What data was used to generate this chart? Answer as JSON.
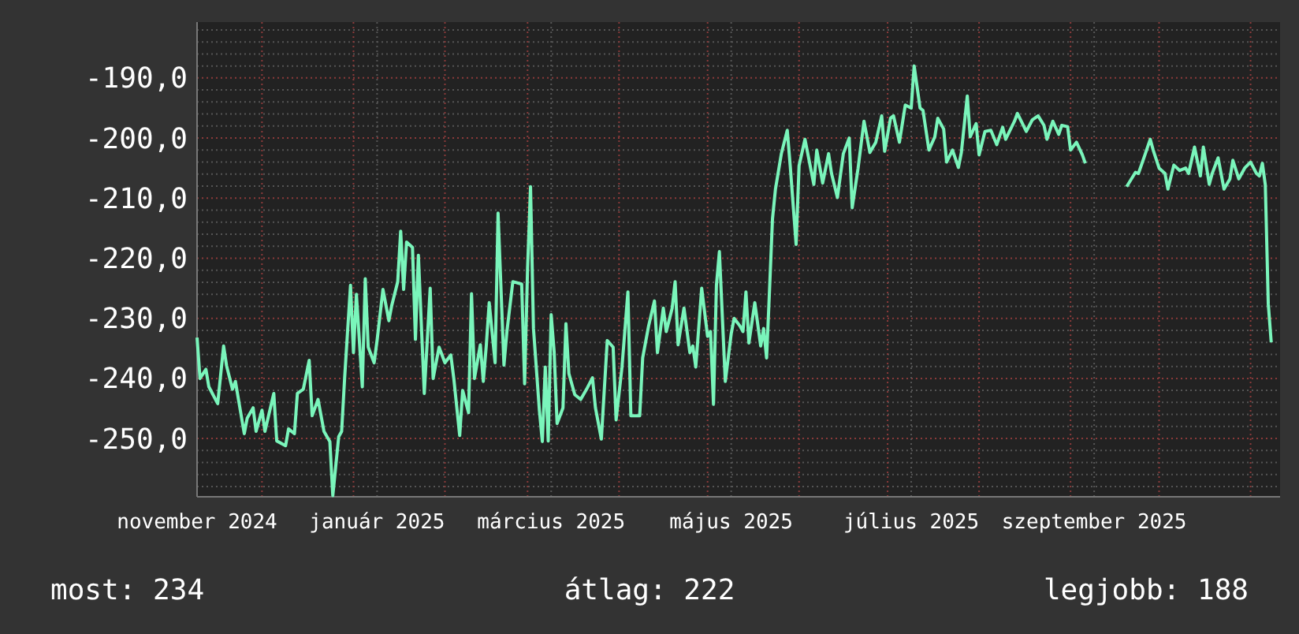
{
  "chart_data": {
    "type": "line",
    "xlim": [
      "2024-11-09",
      "2025-11-11"
    ],
    "ylim": [
      -259.7,
      -180.7
    ],
    "xticks": [
      {
        "value": "2024-11-09",
        "label": "november 2024"
      },
      {
        "value": "2024-12-01",
        "label": null
      },
      {
        "value": "2025-01-01",
        "label": null
      },
      {
        "value": "2025-01-09",
        "label": "január 2025"
      },
      {
        "value": "2025-02-01",
        "label": null
      },
      {
        "value": "2025-03-01",
        "label": null
      },
      {
        "value": "2025-03-09",
        "label": "március 2025"
      },
      {
        "value": "2025-04-01",
        "label": null
      },
      {
        "value": "2025-05-01",
        "label": null
      },
      {
        "value": "2025-05-09",
        "label": "május 2025"
      },
      {
        "value": "2025-06-01",
        "label": null
      },
      {
        "value": "2025-07-01",
        "label": null
      },
      {
        "value": "2025-07-09",
        "label": "július 2025"
      },
      {
        "value": "2025-08-01",
        "label": null
      },
      {
        "value": "2025-09-01",
        "label": null
      },
      {
        "value": "2025-09-09",
        "label": "szeptember 2025"
      },
      {
        "value": "2025-10-01",
        "label": null
      },
      {
        "value": "2025-11-01",
        "label": null
      }
    ],
    "yticks": [
      {
        "value": -258,
        "label": null
      },
      {
        "value": -256,
        "label": null
      },
      {
        "value": -254,
        "label": null
      },
      {
        "value": -252,
        "label": null
      },
      {
        "value": -250,
        "label": "-250,0"
      },
      {
        "value": -248,
        "label": null
      },
      {
        "value": -246,
        "label": null
      },
      {
        "value": -244,
        "label": null
      },
      {
        "value": -242,
        "label": null
      },
      {
        "value": -240,
        "label": "-240,0"
      },
      {
        "value": -238,
        "label": null
      },
      {
        "value": -236,
        "label": null
      },
      {
        "value": -234,
        "label": null
      },
      {
        "value": -232,
        "label": null
      },
      {
        "value": -230,
        "label": "-230,0"
      },
      {
        "value": -228,
        "label": null
      },
      {
        "value": -226,
        "label": null
      },
      {
        "value": -224,
        "label": null
      },
      {
        "value": -222,
        "label": null
      },
      {
        "value": -220,
        "label": "-220,0"
      },
      {
        "value": -218,
        "label": null
      },
      {
        "value": -216,
        "label": null
      },
      {
        "value": -214,
        "label": null
      },
      {
        "value": -212,
        "label": null
      },
      {
        "value": -210,
        "label": "-210,0"
      },
      {
        "value": -208,
        "label": null
      },
      {
        "value": -206,
        "label": null
      },
      {
        "value": -204,
        "label": null
      },
      {
        "value": -202,
        "label": null
      },
      {
        "value": -200,
        "label": "-200,0"
      },
      {
        "value": -198,
        "label": null
      },
      {
        "value": -196,
        "label": null
      },
      {
        "value": -194,
        "label": null
      },
      {
        "value": -192,
        "label": null
      },
      {
        "value": -190,
        "label": "-190,0"
      },
      {
        "value": -188,
        "label": null
      },
      {
        "value": -186,
        "label": null
      },
      {
        "value": -184,
        "label": null
      },
      {
        "value": -182,
        "label": null
      }
    ],
    "grid": true,
    "annotations": [
      "most: 234",
      "átlag: 222",
      "legjobb: 188"
    ],
    "x": [
      "2024-11-09",
      "2024-11-10",
      "2024-11-12",
      "2024-11-13",
      "2024-11-16",
      "2024-11-18",
      "2024-11-19",
      "2024-11-21",
      "2024-11-22",
      "2024-11-25",
      "2024-11-26",
      "2024-11-28",
      "2024-11-29",
      "2024-12-01",
      "2024-12-02",
      "2024-12-05",
      "2024-12-06",
      "2024-12-09",
      "2024-12-10",
      "2024-12-12",
      "2024-12-13",
      "2024-12-15",
      "2024-12-17",
      "2024-12-18",
      "2024-12-20",
      "2024-12-22",
      "2024-12-24",
      "2024-12-25",
      "2024-12-27",
      "2024-12-28",
      "2024-12-29",
      "2024-12-31",
      "2025-01-01",
      "2025-01-02",
      "2025-01-04",
      "2025-01-05",
      "2025-01-06",
      "2025-01-08",
      "2025-01-09",
      "2025-01-11",
      "2025-01-13",
      "2025-01-14",
      "2025-01-16",
      "2025-01-17",
      "2025-01-18",
      "2025-01-19",
      "2025-01-21",
      "2025-01-22",
      "2025-01-23",
      "2025-01-25",
      "2025-01-27",
      "2025-01-28",
      "2025-01-30",
      "2025-02-01",
      "2025-02-03",
      "2025-02-04",
      "2025-02-06",
      "2025-02-07",
      "2025-02-09",
      "2025-02-10",
      "2025-02-11",
      "2025-02-13",
      "2025-02-14",
      "2025-02-15",
      "2025-02-16",
      "2025-02-18",
      "2025-02-19",
      "2025-02-21",
      "2025-02-22",
      "2025-02-24",
      "2025-02-27",
      "2025-02-28",
      "2025-03-01",
      "2025-03-02",
      "2025-03-03",
      "2025-03-05",
      "2025-03-06",
      "2025-03-07",
      "2025-03-08",
      "2025-03-09",
      "2025-03-10",
      "2025-03-11",
      "2025-03-13",
      "2025-03-14",
      "2025-03-15",
      "2025-03-17",
      "2025-03-19",
      "2025-03-21",
      "2025-03-23",
      "2025-03-24",
      "2025-03-26",
      "2025-03-28",
      "2025-03-30",
      "2025-03-31",
      "2025-04-02",
      "2025-04-04",
      "2025-04-05",
      "2025-04-08",
      "2025-04-09",
      "2025-04-11",
      "2025-04-13",
      "2025-04-14",
      "2025-04-16",
      "2025-04-17",
      "2025-04-19",
      "2025-04-20",
      "2025-04-21",
      "2025-04-23",
      "2025-04-25",
      "2025-04-26",
      "2025-04-27",
      "2025-04-29",
      "2025-05-01",
      "2025-05-02",
      "2025-05-03",
      "2025-05-04",
      "2025-05-05",
      "2025-05-07",
      "2025-05-09",
      "2025-05-10",
      "2025-05-12",
      "2025-05-13",
      "2025-05-14",
      "2025-05-15",
      "2025-05-17",
      "2025-05-19",
      "2025-05-20",
      "2025-05-21",
      "2025-05-22",
      "2025-05-23",
      "2025-05-24",
      "2025-05-26",
      "2025-05-28",
      "2025-05-29",
      "2025-05-31",
      "2025-06-01",
      "2025-06-03",
      "2025-06-06",
      "2025-06-07",
      "2025-06-09",
      "2025-06-11",
      "2025-06-12",
      "2025-06-14",
      "2025-06-16",
      "2025-06-18",
      "2025-06-19",
      "2025-06-21",
      "2025-06-23",
      "2025-06-25",
      "2025-06-27",
      "2025-06-29",
      "2025-06-30",
      "2025-07-02",
      "2025-07-03",
      "2025-07-05",
      "2025-07-07",
      "2025-07-09",
      "2025-07-10",
      "2025-07-12",
      "2025-07-13",
      "2025-07-15",
      "2025-07-17",
      "2025-07-18",
      "2025-07-20",
      "2025-07-21",
      "2025-07-23",
      "2025-07-25",
      "2025-07-26",
      "2025-07-28",
      "2025-07-29",
      "2025-07-31",
      "2025-08-01",
      "2025-08-03",
      "2025-08-05",
      "2025-08-07",
      "2025-08-09",
      "2025-08-10",
      "2025-08-13",
      "2025-08-14",
      "2025-08-17",
      "2025-08-19",
      "2025-08-21",
      "2025-08-23",
      "2025-08-24",
      "2025-08-26",
      "2025-08-28",
      "2025-08-29",
      "2025-08-31",
      "2025-09-01",
      "2025-09-03",
      "2025-09-05",
      "2025-09-06",
      "2025-09-13",
      "2025-09-20",
      "2025-09-23",
      "2025-09-24",
      "2025-09-26",
      "2025-09-28",
      "2025-09-29",
      "2025-10-01",
      "2025-10-03",
      "2025-10-04",
      "2025-10-06",
      "2025-10-08",
      "2025-10-10",
      "2025-10-11",
      "2025-10-13",
      "2025-10-15",
      "2025-10-16",
      "2025-10-18",
      "2025-10-19",
      "2025-10-21",
      "2025-10-23",
      "2025-10-25",
      "2025-10-26",
      "2025-10-28",
      "2025-10-30",
      "2025-11-01",
      "2025-11-03",
      "2025-11-04",
      "2025-11-05",
      "2025-11-06",
      "2025-11-07",
      "2025-11-08"
    ],
    "series": [
      {
        "color": "#7af5bb",
        "values": [
          -233.2,
          -240,
          -238.5,
          -241.4,
          -244.2,
          -234.6,
          -237.9,
          -241.8,
          -240.5,
          -249.2,
          -246.6,
          -244.9,
          -248.8,
          -245.3,
          -248.8,
          -242.5,
          -250.4,
          -251.2,
          -248.4,
          -249.2,
          -242.5,
          -241.8,
          -237,
          -246.2,
          -243.5,
          -248.8,
          -250.5,
          -259.5,
          -249.7,
          -248.8,
          -240,
          -224.5,
          -235.7,
          -226,
          -241.4,
          -223.4,
          -234.8,
          -237.4,
          -233.7,
          -225.2,
          -230.4,
          -227.8,
          -223.9,
          -215.5,
          -225.2,
          -217.3,
          -218.2,
          -233.5,
          -219.5,
          -242.5,
          -225,
          -240,
          -234.8,
          -237.4,
          -236.1,
          -240,
          -249.5,
          -242,
          -245.7,
          -225.9,
          -240,
          -234.4,
          -240.5,
          -234.6,
          -227.4,
          -237.4,
          -212.5,
          -237.8,
          -232.2,
          -223.9,
          -224.3,
          -240.9,
          -221.7,
          -208.1,
          -231.7,
          -245.3,
          -250.5,
          -238.1,
          -250.4,
          -229.4,
          -235.5,
          -247.5,
          -244.9,
          -230.9,
          -239.2,
          -242.7,
          -243.5,
          -241.8,
          -239.9,
          -244.9,
          -250.1,
          -233.7,
          -234.8,
          -246.9,
          -238.1,
          -225.6,
          -246.2,
          -246.2,
          -236.6,
          -231.3,
          -227.1,
          -235.7,
          -228.3,
          -232.2,
          -228.3,
          -223.9,
          -234.4,
          -228.3,
          -235.7,
          -234.6,
          -238.1,
          -225,
          -233,
          -232.2,
          -244.3,
          -224.5,
          -218.9,
          -240.5,
          -232.6,
          -230,
          -231.3,
          -232.2,
          -225.6,
          -234.1,
          -227.4,
          -234.6,
          -231.7,
          -236.6,
          -225.2,
          -213.4,
          -208.5,
          -202.6,
          -198.7,
          -204.6,
          -217.7,
          -204.6,
          -200.2,
          -207.7,
          -202,
          -207.5,
          -202.6,
          -205.9,
          -209.9,
          -202.6,
          -200,
          -211.6,
          -205,
          -197.2,
          -202.4,
          -200.7,
          -196.3,
          -202.2,
          -196.7,
          -196.3,
          -200.7,
          -194.5,
          -195,
          -188,
          -195,
          -195.4,
          -202,
          -199.8,
          -196.7,
          -198.5,
          -204,
          -202,
          -204.9,
          -202.4,
          -193,
          -199.8,
          -197.6,
          -202.8,
          -198.9,
          -198.7,
          -201.1,
          -198.2,
          -200.2,
          -197.2,
          -195.9,
          -198.9,
          -197,
          -196.3,
          -197.9,
          -200.2,
          -197.2,
          -199.4,
          -197.9,
          -198.1,
          -202,
          -200.7,
          -202.8,
          -204.2,
          null,
          -208.1,
          -205.7,
          -205.9,
          -203.1,
          -200.2,
          -202,
          -205,
          -205.9,
          -208.5,
          -204.5,
          -205.4,
          -205,
          -205.9,
          -201.5,
          -206.3,
          -201.5,
          -207.7,
          -205.9,
          -203.3,
          -208.5,
          -206.8,
          -203.7,
          -206.8,
          -205,
          -204,
          -205.9,
          -206.3,
          -204.2,
          -207.8,
          -227.6,
          -234
        ]
      }
    ]
  }
}
